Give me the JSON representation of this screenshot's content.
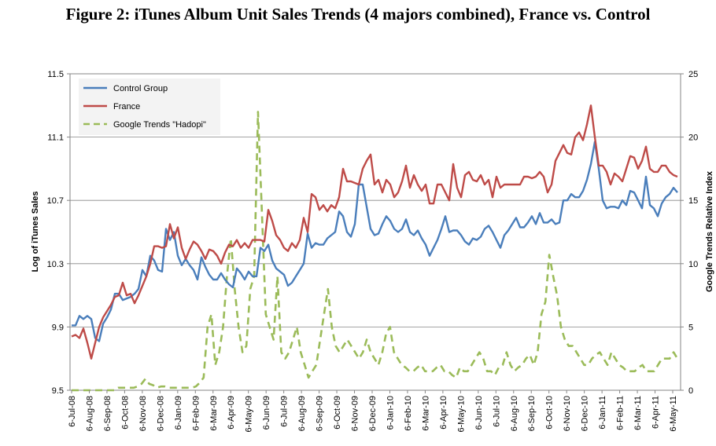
{
  "figure_title": "Figure 2: iTunes Album Unit Sales Trends (4 majors combined), France vs. Control",
  "chart_data": {
    "type": "line",
    "title": "Figure 2: iTunes Album Unit Sales Trends (4 majors combined), France vs. Control",
    "ylabel": "Log of iTunes Sales",
    "y2label": "Google Trends Relative Index",
    "ylim": [
      9.5,
      11.5
    ],
    "y2lim": [
      0,
      25
    ],
    "yticks": [
      "9.5",
      "9.9",
      "10.3",
      "10.7",
      "11.1",
      "11.5"
    ],
    "y2ticks": [
      "0",
      "5",
      "10",
      "15",
      "20",
      "25"
    ],
    "xticks": [
      "6-Jul-08",
      "6-Aug-08",
      "6-Sep-08",
      "6-Oct-08",
      "6-Nov-08",
      "6-Dec-08",
      "6-Jan-09",
      "6-Feb-09",
      "6-Mar-09",
      "6-Apr-09",
      "6-May-09",
      "6-Jun-09",
      "6-Jul-09",
      "6-Aug-09",
      "6-Sep-09",
      "6-Oct-09",
      "6-Nov-09",
      "6-Dec-09",
      "6-Jan-10",
      "6-Feb-10",
      "6-Mar-10",
      "6-Apr-10",
      "6-May-10",
      "6-Jun-10",
      "6-Jul-10",
      "6-Aug-10",
      "6-Sep-10",
      "6-Oct-10",
      "6-Nov-10",
      "6-Dec-10",
      "6-Jan-11",
      "6-Feb-11",
      "6-Mar-11",
      "6-Apr-11",
      "6-May-11"
    ],
    "grid": true,
    "legend_position": "top-left",
    "series": [
      {
        "name": "Control Group",
        "color": "#4a7ebb",
        "axis": "left",
        "style": "solid",
        "values": [
          9.91,
          9.91,
          9.97,
          9.95,
          9.97,
          9.95,
          9.83,
          9.81,
          9.92,
          9.96,
          10.01,
          10.11,
          10.11,
          10.07,
          10.08,
          10.09,
          10.11,
          10.14,
          10.26,
          10.22,
          10.35,
          10.32,
          10.26,
          10.25,
          10.52,
          10.45,
          10.5,
          10.35,
          10.29,
          10.33,
          10.29,
          10.26,
          10.2,
          10.34,
          10.28,
          10.23,
          10.2,
          10.2,
          10.24,
          10.2,
          10.17,
          10.15,
          10.27,
          10.24,
          10.2,
          10.25,
          10.22,
          10.22,
          10.4,
          10.38,
          10.42,
          10.32,
          10.27,
          10.25,
          10.23,
          10.16,
          10.18,
          10.22,
          10.26,
          10.3,
          10.49,
          10.4,
          10.43,
          10.42,
          10.42,
          10.46,
          10.48,
          10.5,
          10.63,
          10.6,
          10.5,
          10.47,
          10.55,
          10.8,
          10.8,
          10.66,
          10.52,
          10.48,
          10.49,
          10.55,
          10.6,
          10.57,
          10.52,
          10.5,
          10.52,
          10.58,
          10.5,
          10.48,
          10.51,
          10.46,
          10.42,
          10.35,
          10.4,
          10.45,
          10.52,
          10.6,
          10.5,
          10.51,
          10.51,
          10.48,
          10.44,
          10.42,
          10.46,
          10.45,
          10.47,
          10.52,
          10.54,
          10.5,
          10.45,
          10.4,
          10.48,
          10.51,
          10.55,
          10.59,
          10.53,
          10.53,
          10.56,
          10.6,
          10.55,
          10.62,
          10.56,
          10.56,
          10.58,
          10.55,
          10.56,
          10.7,
          10.7,
          10.74,
          10.72,
          10.72,
          10.76,
          10.83,
          10.93,
          11.07,
          10.9,
          10.7,
          10.65,
          10.66,
          10.66,
          10.65,
          10.7,
          10.67,
          10.76,
          10.75,
          10.7,
          10.65,
          10.85,
          10.67,
          10.65,
          10.6,
          10.68,
          10.72,
          10.74,
          10.78,
          10.75
        ]
      },
      {
        "name": "France",
        "color": "#be4b48",
        "axis": "left",
        "style": "solid",
        "values": [
          9.84,
          9.85,
          9.83,
          9.89,
          9.8,
          9.7,
          9.8,
          9.9,
          9.96,
          10.0,
          10.04,
          10.09,
          10.1,
          10.18,
          10.1,
          10.11,
          10.05,
          10.1,
          10.16,
          10.22,
          10.3,
          10.41,
          10.41,
          10.4,
          10.41,
          10.55,
          10.46,
          10.53,
          10.4,
          10.33,
          10.39,
          10.44,
          10.42,
          10.38,
          10.33,
          10.39,
          10.38,
          10.35,
          10.3,
          10.37,
          10.42,
          10.41,
          10.45,
          10.4,
          10.43,
          10.4,
          10.45,
          10.45,
          10.45,
          10.44,
          10.64,
          10.57,
          10.48,
          10.45,
          10.4,
          10.38,
          10.43,
          10.4,
          10.45,
          10.59,
          10.5,
          10.74,
          10.72,
          10.64,
          10.67,
          10.63,
          10.67,
          10.65,
          10.72,
          10.9,
          10.82,
          10.82,
          10.81,
          10.8,
          10.9,
          10.95,
          10.99,
          10.8,
          10.83,
          10.75,
          10.83,
          10.8,
          10.72,
          10.75,
          10.82,
          10.92,
          10.78,
          10.86,
          10.8,
          10.76,
          10.8,
          10.68,
          10.68,
          10.8,
          10.8,
          10.75,
          10.7,
          10.93,
          10.78,
          10.72,
          10.86,
          10.88,
          10.83,
          10.82,
          10.86,
          10.8,
          10.83,
          10.72,
          10.85,
          10.78,
          10.8,
          10.8,
          10.8,
          10.8,
          10.8,
          10.85,
          10.85,
          10.84,
          10.85,
          10.88,
          10.85,
          10.75,
          10.8,
          10.95,
          11.0,
          11.05,
          11.0,
          10.99,
          11.1,
          11.13,
          11.08,
          11.18,
          11.3,
          11.1,
          10.92,
          10.92,
          10.88,
          10.8,
          10.87,
          10.85,
          10.82,
          10.9,
          10.98,
          10.97,
          10.9,
          10.95,
          11.04,
          10.9,
          10.88,
          10.88,
          10.92,
          10.92,
          10.88,
          10.86,
          10.85
        ]
      },
      {
        "name": "Google Trends \"Hadopi\"",
        "color": "#9bbb59",
        "axis": "right",
        "style": "dashed",
        "values": [
          0,
          0,
          0,
          0,
          0,
          0,
          0,
          0,
          0,
          0,
          0,
          0,
          0.2,
          0.2,
          0.2,
          0.2,
          0.2,
          0.3,
          0.5,
          0.9,
          0.5,
          0.4,
          0.2,
          0.3,
          0.3,
          0.2,
          0.2,
          0.2,
          0.2,
          0.2,
          0.2,
          0.2,
          0.3,
          0.6,
          1.0,
          5.0,
          6.0,
          2.0,
          3.0,
          5.0,
          9.0,
          12.0,
          8.0,
          5.0,
          3.0,
          3.5,
          8.0,
          9.0,
          22.0,
          14.0,
          6.0,
          5.0,
          4.0,
          9.0,
          3.0,
          2.5,
          3.0,
          4.0,
          5.0,
          3.0,
          2.0,
          1.0,
          1.5,
          2.0,
          4.0,
          6.0,
          8.0,
          5.0,
          3.5,
          3.0,
          3.5,
          4.0,
          3.5,
          3.0,
          2.5,
          3.0,
          4.0,
          3.0,
          2.5,
          2.0,
          3.0,
          4.5,
          5.0,
          3.0,
          2.5,
          2.0,
          1.8,
          1.5,
          1.5,
          1.8,
          2.0,
          1.5,
          1.5,
          1.5,
          1.8,
          2.0,
          1.5,
          1.5,
          1.2,
          1.0,
          1.8,
          1.5,
          1.5,
          2.0,
          2.5,
          3.0,
          2.5,
          1.5,
          1.5,
          1.2,
          1.8,
          2.0,
          3.0,
          2.0,
          1.5,
          1.8,
          2.0,
          2.5,
          2.8,
          2.0,
          3.0,
          6.0,
          7.0,
          10.7,
          9.0,
          7.5,
          5.0,
          4.0,
          3.5,
          3.5,
          3.0,
          2.5,
          2.0,
          2.0,
          2.5,
          2.8,
          3.0,
          2.5,
          2.0,
          3.0,
          2.5,
          2.0,
          1.8,
          1.5,
          1.5,
          1.5,
          1.8,
          2.0,
          1.5,
          1.5,
          1.5,
          2.0,
          2.5,
          2.5,
          2.5,
          3.0,
          2.5
        ]
      }
    ]
  }
}
